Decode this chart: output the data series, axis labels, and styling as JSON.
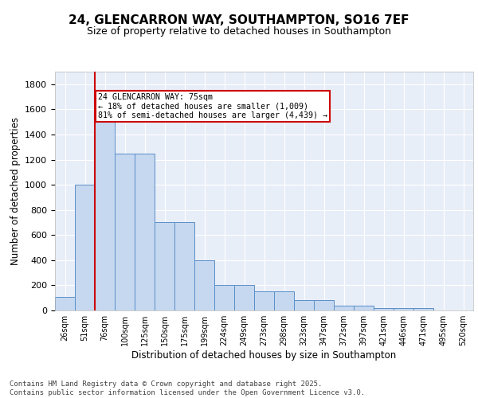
{
  "title_line1": "24, GLENCARRON WAY, SOUTHAMPTON, SO16 7EF",
  "title_line2": "Size of property relative to detached houses in Southampton",
  "xlabel": "Distribution of detached houses by size in Southampton",
  "ylabel": "Number of detached properties",
  "categories": [
    "26sqm",
    "51sqm",
    "76sqm",
    "100sqm",
    "125sqm",
    "150sqm",
    "175sqm",
    "199sqm",
    "224sqm",
    "249sqm",
    "273sqm",
    "298sqm",
    "323sqm",
    "347sqm",
    "372sqm",
    "397sqm",
    "421sqm",
    "446sqm",
    "471sqm",
    "495sqm",
    "520sqm"
  ],
  "values": [
    105,
    1000,
    1500,
    1250,
    1250,
    700,
    700,
    400,
    205,
    205,
    150,
    150,
    80,
    80,
    35,
    35,
    20,
    20,
    20,
    0,
    0
  ],
  "bar_color": "#c5d8f0",
  "bar_edge_color": "#5b8fc7",
  "background_color": "#e8eef8",
  "grid_color": "#ffffff",
  "vline_color": "#cc0000",
  "annotation_text": "24 GLENCARRON WAY: 75sqm\n← 18% of detached houses are smaller (1,009)\n81% of semi-detached houses are larger (4,439) →",
  "annotation_box_color": "#cc0000",
  "ylim": [
    0,
    1900
  ],
  "yticks": [
    0,
    200,
    400,
    600,
    800,
    1000,
    1200,
    1400,
    1600,
    1800
  ],
  "footer_text": "Contains HM Land Registry data © Crown copyright and database right 2025.\nContains public sector information licensed under the Open Government Licence v3.0.",
  "title_fontsize": 11,
  "subtitle_fontsize": 9,
  "tick_fontsize": 7,
  "label_fontsize": 8.5,
  "footer_fontsize": 6.5
}
